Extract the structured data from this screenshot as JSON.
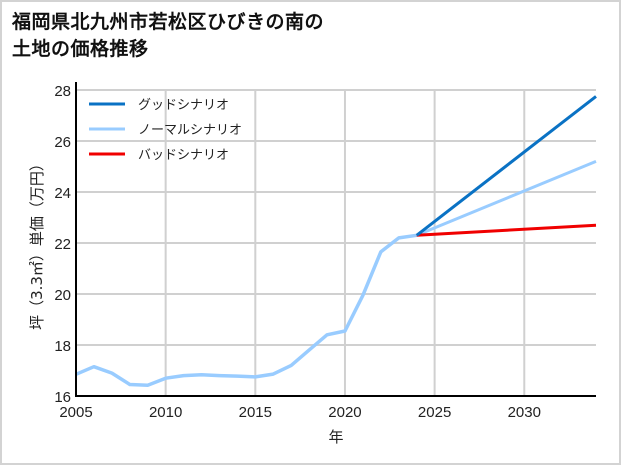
{
  "title_lines": [
    "福岡県北九州市若松区ひびきの南の",
    "土地の価格推移"
  ],
  "chart_data": {
    "type": "line",
    "title": "福岡県北九州市若松区ひびきの南の土地の価格推移",
    "xlabel": "年",
    "ylabel": "坪（3.3㎡）単価（万円）",
    "xlim": [
      2005,
      2034
    ],
    "ylim": [
      16,
      28
    ],
    "x_ticks": [
      "2005",
      "2010",
      "2015",
      "2020",
      "2025",
      "2030"
    ],
    "y_ticks": [
      "16",
      "18",
      "20",
      "22",
      "24",
      "26",
      "28"
    ],
    "grid": true,
    "legend_position": "upper left",
    "historical": {
      "x": [
        2005,
        2006,
        2007,
        2008,
        2009,
        2010,
        2011,
        2012,
        2013,
        2014,
        2015,
        2016,
        2017,
        2018,
        2019,
        2020,
        2021,
        2022,
        2023,
        2024
      ],
      "values": [
        16.85,
        17.15,
        16.9,
        16.45,
        16.42,
        16.7,
        16.8,
        16.83,
        16.8,
        16.78,
        16.75,
        16.86,
        17.2,
        17.8,
        18.4,
        18.55,
        19.95,
        21.65,
        22.2,
        22.3
      ]
    },
    "series": [
      {
        "name": "グッドシナリオ",
        "color": "#0a72c4",
        "x": [
          2024,
          2034
        ],
        "values": [
          22.3,
          27.75
        ]
      },
      {
        "name": "ノーマルシナリオ",
        "color": "#99ccff",
        "x": [
          2024,
          2034
        ],
        "values": [
          22.3,
          25.2
        ]
      },
      {
        "name": "バッドシナリオ",
        "color": "#f00000",
        "x": [
          2024,
          2034
        ],
        "values": [
          22.3,
          22.7
        ]
      }
    ]
  }
}
